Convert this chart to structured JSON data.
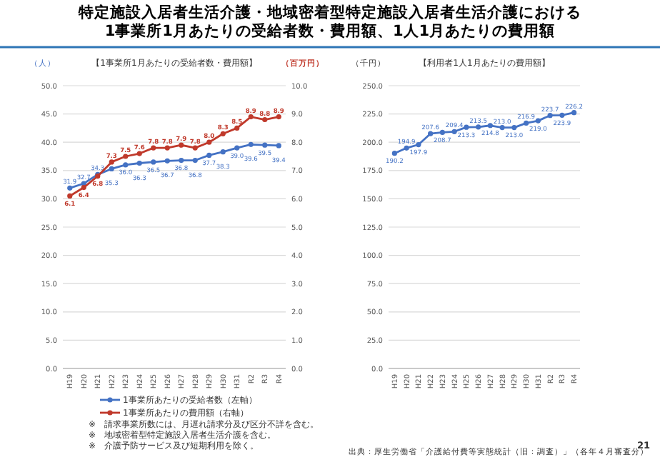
{
  "chart_data": [
    {
      "type": "line",
      "title": "特定施設入居者生活介護・地域密着型特定施設入居者生活介護における\n1事業所1月あたりの受給者数・費用額、1人1月あたりの費用額",
      "subtitle": "【1事業所1月あたりの受給者数・費用額】",
      "ylabel": "（人）",
      "y2label": "（百万円）",
      "categories": [
        "H19",
        "H20",
        "H21",
        "H22",
        "H23",
        "H24",
        "H25",
        "H26",
        "H27",
        "H28",
        "H29",
        "H30",
        "H31",
        "R2",
        "R3",
        "R4"
      ],
      "series": [
        {
          "name": "1事業所あたりの受給者数（左軸）",
          "color": "#4472c4",
          "values": [
            31.9,
            32.7,
            34.3,
            35.3,
            36.0,
            36.3,
            36.5,
            36.7,
            36.8,
            36.8,
            37.7,
            38.3,
            39.0,
            39.6,
            39.5,
            39.4
          ],
          "value_labels": [
            "31.9",
            "32.7",
            "34.3",
            "35.3",
            "36.0",
            "36.3",
            "36.5",
            "36.7",
            "36.8",
            "36.8",
            "37.7",
            "38.3",
            "39.0",
            "39.6",
            "39.5",
            "39.4"
          ]
        },
        {
          "name": "1事業所あたりの費用額（右軸）",
          "color": "#c0392b",
          "axis": "y2",
          "values": [
            6.1,
            6.4,
            6.8,
            7.3,
            7.5,
            7.6,
            7.8,
            7.8,
            7.9,
            7.8,
            8.0,
            8.3,
            8.5,
            8.9,
            8.8,
            8.9
          ],
          "value_labels": [
            "6.1",
            "6.4",
            "6.8",
            "7.3",
            "7.5",
            "7.6",
            "7.8",
            "7.8",
            "7.9",
            "7.8",
            "8.0",
            "8.3",
            "8.5",
            "8.9",
            "8.8",
            "8.9"
          ]
        }
      ],
      "ylim": [
        0,
        50
      ],
      "yticks": [
        {
          "value": 0,
          "label": "0.0"
        },
        {
          "value": 5,
          "label": "5.0"
        },
        {
          "value": 10,
          "label": "10.0"
        },
        {
          "value": 15,
          "label": "15.0"
        },
        {
          "value": 20,
          "label": "20.0"
        },
        {
          "value": 25,
          "label": "25.0"
        },
        {
          "value": 30,
          "label": "30.0"
        },
        {
          "value": 35,
          "label": "35.0"
        },
        {
          "value": 40,
          "label": "40.0"
        },
        {
          "value": 45,
          "label": "45.0"
        },
        {
          "value": 50,
          "label": "50.0"
        }
      ],
      "y2lim": [
        0,
        10
      ],
      "y2ticks": [
        {
          "value": 0,
          "label": "0.0"
        },
        {
          "value": 1,
          "label": "1.0"
        },
        {
          "value": 2,
          "label": "2.0"
        },
        {
          "value": 3,
          "label": "3.0"
        },
        {
          "value": 4,
          "label": "4.0"
        },
        {
          "value": 5,
          "label": "5.0"
        },
        {
          "value": 6,
          "label": "6.0"
        },
        {
          "value": 7,
          "label": "7.0"
        },
        {
          "value": 8,
          "label": "8.0"
        },
        {
          "value": 9,
          "label": "9.0"
        },
        {
          "value": 10,
          "label": "10.0"
        }
      ],
      "grid": "y",
      "marker": "circle",
      "legend": "bottom",
      "annotations": [
        "※　請求事業所数には、月遅れ請求分及び区分不詳を含む。",
        "※　地域密着型特定施設入居者生活介護を含む。",
        "※　介護予防サービス及び短期利用を除く。"
      ]
    },
    {
      "type": "line",
      "title": "【利用者1人1月あたりの費用額】",
      "ylabel": "（千円）",
      "categories": [
        "H19",
        "H20",
        "H21",
        "H22",
        "H23",
        "H24",
        "H25",
        "H26",
        "H27",
        "H28",
        "H29",
        "H30",
        "H31",
        "R2",
        "R3",
        "R4"
      ],
      "series": [
        {
          "color": "#4472c4",
          "values": [
            190.2,
            194.9,
            197.9,
            207.6,
            208.7,
            209.4,
            213.3,
            213.5,
            214.8,
            213.0,
            213.0,
            216.9,
            219.0,
            223.7,
            223.9,
            226.2
          ],
          "value_labels": [
            "190.2",
            "194.9",
            "197.9",
            "207.6",
            "208.7",
            "209.4",
            "213.3",
            "213.5",
            "214.8",
            "213.0",
            "213.0",
            "216.9",
            "219.0",
            "223.7",
            "223.9",
            "226.2"
          ]
        }
      ],
      "ylim": [
        0,
        250
      ],
      "yticks": [
        {
          "value": 0,
          "label": "0.0"
        },
        {
          "value": 25,
          "label": "25.0"
        },
        {
          "value": 50,
          "label": "50.0"
        },
        {
          "value": 75,
          "label": "75.0"
        },
        {
          "value": 100,
          "label": "100.0"
        },
        {
          "value": 125,
          "label": "125.0"
        },
        {
          "value": 150,
          "label": "150.0"
        },
        {
          "value": 175,
          "label": "175.0"
        },
        {
          "value": 200,
          "label": "200.0"
        },
        {
          "value": 225,
          "label": "225.0"
        },
        {
          "value": 250,
          "label": "250.0"
        }
      ],
      "grid": "y",
      "marker": "circle",
      "annotations": [
        "出典：厚生労働省「介護給付費等実態統計（旧：調査）」（各年４月審査分）",
        "21"
      ]
    }
  ]
}
